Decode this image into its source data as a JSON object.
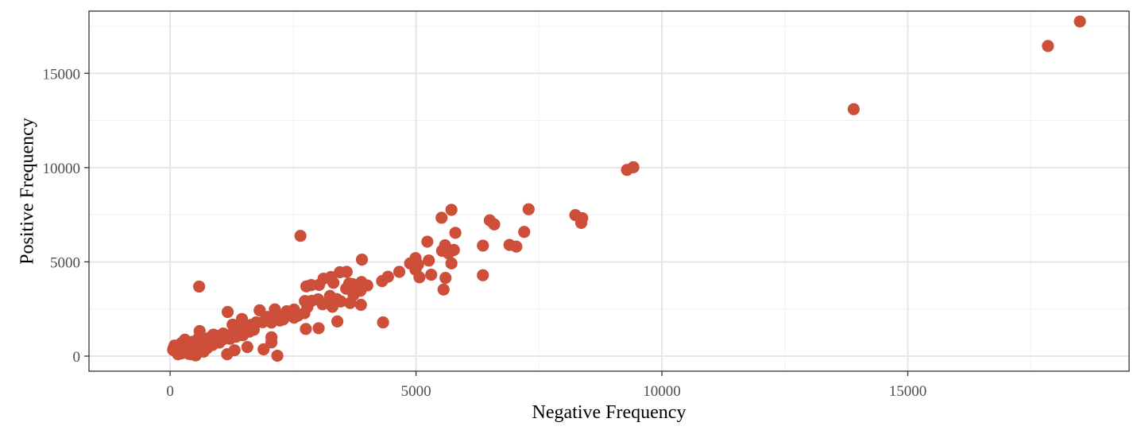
{
  "chart_data": {
    "type": "scatter",
    "xlabel": "Negative Frequency",
    "ylabel": "Positive Frequency",
    "xlim": [
      -1650,
      19500
    ],
    "ylim": [
      -800,
      18300
    ],
    "x_ticks": [
      0,
      5000,
      10000,
      15000
    ],
    "y_ticks": [
      0,
      5000,
      10000,
      15000
    ],
    "x_minor": [
      2500,
      7500,
      12500,
      17500
    ],
    "y_minor": [
      2500,
      7500,
      12500,
      17500
    ],
    "grid": true,
    "legend": "none",
    "point_color": "#cd4f39",
    "series": [
      {
        "points": [
          [
            18500,
            17750
          ],
          [
            17850,
            16450
          ],
          [
            13900,
            13100
          ],
          [
            9420,
            10020
          ],
          [
            9290,
            9880
          ],
          [
            8240,
            7480
          ],
          [
            8380,
            7320
          ],
          [
            8360,
            7070
          ],
          [
            7290,
            7790
          ],
          [
            7200,
            6590
          ],
          [
            6500,
            7200
          ],
          [
            6590,
            6990
          ],
          [
            6360,
            5860
          ],
          [
            6360,
            4290
          ],
          [
            6900,
            5900
          ],
          [
            7040,
            5810
          ],
          [
            5720,
            7760
          ],
          [
            5520,
            7340
          ],
          [
            5800,
            6540
          ],
          [
            5590,
            5880
          ],
          [
            5530,
            5590
          ],
          [
            5770,
            5630
          ],
          [
            5660,
            5450
          ],
          [
            5720,
            4920
          ],
          [
            5600,
            4150
          ],
          [
            5560,
            3530
          ],
          [
            5230,
            6070
          ],
          [
            5260,
            5070
          ],
          [
            5310,
            4320
          ],
          [
            4990,
            5200
          ],
          [
            4880,
            4920
          ],
          [
            5040,
            4850
          ],
          [
            4990,
            4580
          ],
          [
            5070,
            4180
          ],
          [
            4660,
            4470
          ],
          [
            4430,
            4210
          ],
          [
            4310,
            3980
          ],
          [
            4330,
            1790
          ],
          [
            3900,
            5120
          ],
          [
            3890,
            3930
          ],
          [
            4010,
            3750
          ],
          [
            3870,
            3470
          ],
          [
            3880,
            2720
          ],
          [
            3590,
            4470
          ],
          [
            3450,
            4450
          ],
          [
            3640,
            3850
          ],
          [
            3710,
            3820
          ],
          [
            3580,
            3580
          ],
          [
            3730,
            3250
          ],
          [
            3660,
            2820
          ],
          [
            3400,
            1840
          ],
          [
            3270,
            4200
          ],
          [
            3320,
            3890
          ],
          [
            3120,
            4110
          ],
          [
            3030,
            3780
          ],
          [
            3250,
            3190
          ],
          [
            3390,
            3030
          ],
          [
            3470,
            2900
          ],
          [
            3300,
            2620
          ],
          [
            3010,
            3010
          ],
          [
            2880,
            2930
          ],
          [
            3020,
            1480
          ],
          [
            2870,
            3770
          ],
          [
            2770,
            3700
          ],
          [
            2740,
            2920
          ],
          [
            2790,
            2600
          ],
          [
            2730,
            2280
          ],
          [
            2760,
            1440
          ],
          [
            2650,
            6380
          ],
          [
            2520,
            2470
          ],
          [
            2460,
            2230
          ],
          [
            2520,
            2040
          ],
          [
            2370,
            2380
          ],
          [
            2310,
            2140
          ],
          [
            2230,
            1890
          ],
          [
            2130,
            2480
          ],
          [
            2180,
            2180
          ],
          [
            2090,
            1900
          ],
          [
            2180,
            20
          ],
          [
            1970,
            2080
          ],
          [
            2060,
            1780
          ],
          [
            1880,
            1800
          ],
          [
            1820,
            2430
          ],
          [
            1900,
            360
          ],
          [
            2060,
            1000
          ],
          [
            2060,
            730
          ],
          [
            1750,
            1790
          ],
          [
            1640,
            1650
          ],
          [
            1540,
            1450
          ],
          [
            1610,
            1300
          ],
          [
            1570,
            480
          ],
          [
            1460,
            1970
          ],
          [
            1410,
            1570
          ],
          [
            1380,
            1280
          ],
          [
            1340,
            1030
          ],
          [
            1270,
            1670
          ],
          [
            1270,
            1190
          ],
          [
            1220,
            920
          ],
          [
            1160,
            1100
          ],
          [
            1170,
            2340
          ],
          [
            1160,
            100
          ],
          [
            1310,
            310
          ],
          [
            1080,
            1200
          ],
          [
            1070,
            880
          ],
          [
            1000,
            720
          ],
          [
            1010,
            1090
          ],
          [
            960,
            950
          ],
          [
            880,
            1140
          ],
          [
            880,
            860
          ],
          [
            860,
            590
          ],
          [
            820,
            1000
          ],
          [
            830,
            720
          ],
          [
            760,
            930
          ],
          [
            700,
            690
          ],
          [
            700,
            810
          ],
          [
            680,
            580
          ],
          [
            650,
            330
          ],
          [
            590,
            3690
          ],
          [
            600,
            1330
          ],
          [
            580,
            960
          ],
          [
            620,
            600
          ],
          [
            540,
            430
          ],
          [
            540,
            200
          ],
          [
            520,
            40
          ],
          [
            480,
            670
          ],
          [
            440,
            350
          ],
          [
            460,
            760
          ],
          [
            400,
            300
          ],
          [
            370,
            560
          ],
          [
            300,
            870
          ],
          [
            320,
            210
          ],
          [
            330,
            470
          ],
          [
            260,
            360
          ],
          [
            230,
            150
          ],
          [
            230,
            690
          ],
          [
            210,
            460
          ],
          [
            180,
            240
          ],
          [
            160,
            100
          ],
          [
            130,
            430
          ],
          [
            110,
            300
          ],
          [
            90,
            560
          ],
          [
            70,
            420
          ],
          [
            60,
            330
          ],
          [
            680,
            240
          ],
          [
            750,
            420
          ],
          [
            420,
            100
          ],
          [
            380,
            120
          ],
          [
            280,
            280
          ],
          [
            1480,
            1110
          ],
          [
            1700,
            1400
          ],
          [
            2300,
            1950
          ],
          [
            2600,
            2150
          ],
          [
            3100,
            2750
          ]
        ]
      }
    ]
  }
}
